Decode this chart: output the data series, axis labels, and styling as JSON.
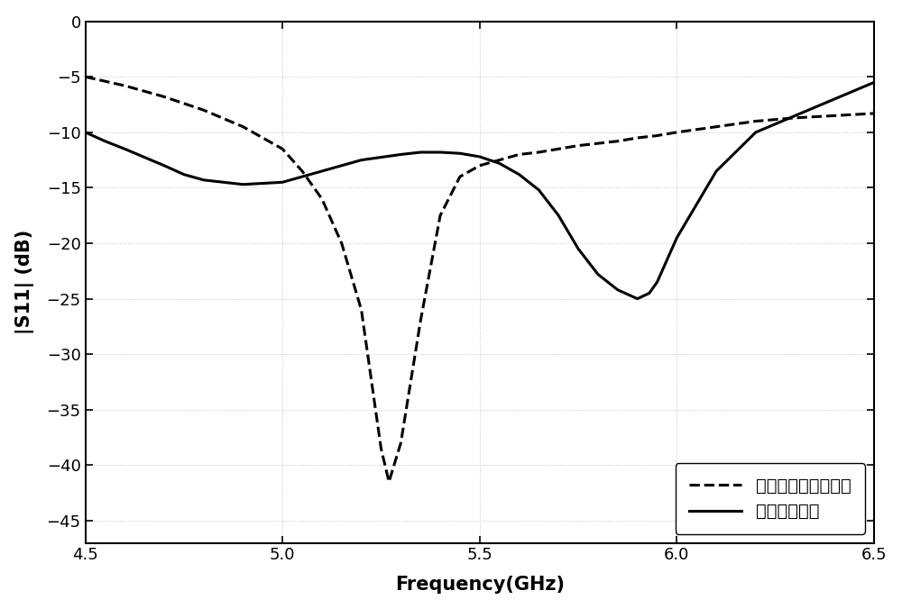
{
  "title": "",
  "xlabel": "Frequency(GHz)",
  "ylabel": "|S11| (dB)",
  "xlim": [
    4.5,
    6.5
  ],
  "ylim": [
    -47,
    0
  ],
  "yticks": [
    0,
    -5,
    -10,
    -15,
    -20,
    -25,
    -30,
    -35,
    -40,
    -45
  ],
  "xticks": [
    4.5,
    5.0,
    5.5,
    6.0,
    6.5
  ],
  "background_color": "#ffffff",
  "plot_bg_color": "#ffffff",
  "line1_color": "#000000",
  "line2_color": "#000000",
  "legend_label1": "均匀周期性贴片阵列",
  "legend_label2": "本发明实施例",
  "dashed_x": [
    4.5,
    4.6,
    4.7,
    4.8,
    4.9,
    5.0,
    5.05,
    5.1,
    5.15,
    5.2,
    5.22,
    5.25,
    5.27,
    5.3,
    5.35,
    5.4,
    5.45,
    5.5,
    5.55,
    5.6,
    5.65,
    5.7,
    5.75,
    5.8,
    5.85,
    5.9,
    5.95,
    6.0,
    6.1,
    6.2,
    6.3,
    6.4,
    6.5
  ],
  "dashed_y": [
    -5.0,
    -5.8,
    -6.8,
    -8.0,
    -9.5,
    -11.5,
    -13.5,
    -16.0,
    -20.0,
    -26.0,
    -31.0,
    -38.5,
    -41.5,
    -38.0,
    -27.0,
    -17.5,
    -14.0,
    -13.0,
    -12.5,
    -12.0,
    -11.8,
    -11.5,
    -11.2,
    -11.0,
    -10.8,
    -10.5,
    -10.3,
    -10.0,
    -9.5,
    -9.0,
    -8.7,
    -8.5,
    -8.3
  ],
  "solid_x": [
    4.5,
    4.55,
    4.6,
    4.7,
    4.75,
    4.8,
    4.9,
    5.0,
    5.1,
    5.2,
    5.3,
    5.35,
    5.4,
    5.45,
    5.5,
    5.55,
    5.6,
    5.65,
    5.7,
    5.75,
    5.8,
    5.85,
    5.9,
    5.93,
    5.95,
    6.0,
    6.1,
    6.2,
    6.3,
    6.4,
    6.5
  ],
  "solid_y": [
    -10.0,
    -10.8,
    -11.5,
    -13.0,
    -13.8,
    -14.3,
    -14.7,
    -14.5,
    -13.5,
    -12.5,
    -12.0,
    -11.8,
    -11.8,
    -11.9,
    -12.2,
    -12.8,
    -13.8,
    -15.2,
    -17.5,
    -20.5,
    -22.8,
    -24.2,
    -25.0,
    -24.5,
    -23.5,
    -19.5,
    -13.5,
    -10.0,
    -8.5,
    -7.0,
    -5.5
  ]
}
